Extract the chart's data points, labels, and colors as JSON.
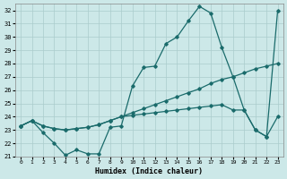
{
  "xlabel": "Humidex (Indice chaleur)",
  "ylabel": "",
  "bg_color": "#cce8e8",
  "grid_color": "#aacccc",
  "line_color": "#1a6b6b",
  "xlim": [
    -0.5,
    23.5
  ],
  "ylim": [
    21,
    32.5
  ],
  "yticks": [
    21,
    22,
    23,
    24,
    25,
    26,
    27,
    28,
    29,
    30,
    31,
    32
  ],
  "xticks": [
    0,
    1,
    2,
    3,
    4,
    5,
    6,
    7,
    8,
    9,
    10,
    11,
    12,
    13,
    14,
    15,
    16,
    17,
    18,
    19,
    20,
    21,
    22,
    23
  ],
  "line1_x": [
    0,
    1,
    2,
    3,
    4,
    5,
    6,
    7,
    8,
    9,
    10,
    11,
    12,
    13,
    14,
    15,
    16,
    17,
    18,
    19,
    20,
    21,
    22,
    23
  ],
  "line1_y": [
    23.3,
    23.7,
    22.8,
    22.0,
    21.1,
    21.5,
    21.2,
    21.2,
    23.2,
    23.3,
    26.3,
    27.7,
    27.8,
    29.5,
    30.0,
    31.2,
    32.3,
    31.8,
    29.2,
    27.0,
    24.5,
    23.0,
    22.5,
    32.0
  ],
  "line2_x": [
    0,
    1,
    2,
    3,
    4,
    5,
    6,
    7,
    8,
    9,
    10,
    11,
    12,
    13,
    14,
    15,
    16,
    17,
    18,
    19,
    20,
    21,
    22,
    23
  ],
  "line2_y": [
    23.3,
    23.7,
    23.3,
    23.1,
    23.0,
    23.1,
    23.2,
    23.4,
    23.7,
    24.0,
    24.3,
    24.6,
    24.9,
    25.2,
    25.5,
    25.8,
    26.1,
    26.5,
    26.8,
    27.0,
    27.3,
    27.6,
    27.8,
    28.0
  ],
  "line3_x": [
    0,
    1,
    2,
    3,
    4,
    5,
    6,
    7,
    8,
    9,
    10,
    11,
    12,
    13,
    14,
    15,
    16,
    17,
    18,
    19,
    20,
    21,
    22,
    23
  ],
  "line3_y": [
    23.3,
    23.7,
    23.3,
    23.1,
    23.0,
    23.1,
    23.2,
    23.4,
    23.7,
    24.0,
    24.1,
    24.2,
    24.3,
    24.4,
    24.5,
    24.6,
    24.7,
    24.8,
    24.9,
    24.5,
    24.5,
    23.0,
    22.5,
    24.0
  ]
}
